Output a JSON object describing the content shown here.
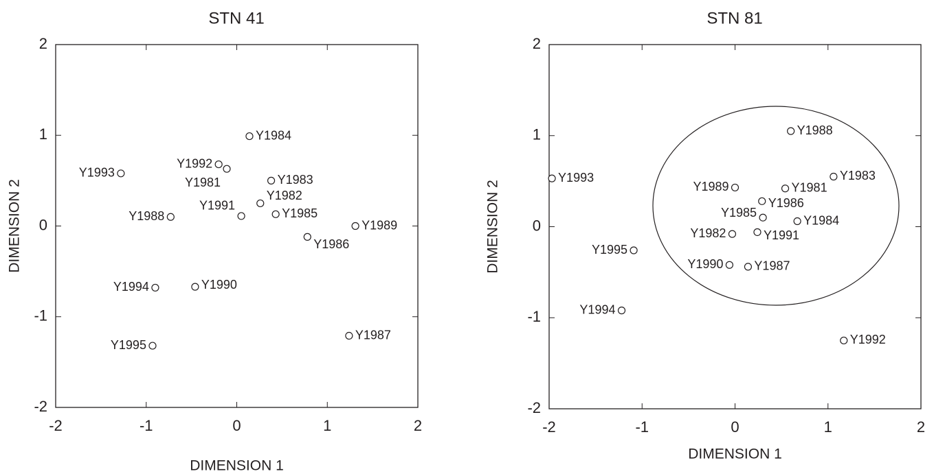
{
  "chart_data": [
    {
      "type": "scatter",
      "title": "STN 41",
      "xlabel": "DIMENSION 1",
      "ylabel": "DIMENSION 2",
      "color": "#231f20",
      "point_labels": [
        "Y1984",
        "Y1992",
        "Y1981",
        "Y1993",
        "Y1983",
        "Y1982",
        "Y1991",
        "Y1985",
        "Y1988",
        "Y1989",
        "Y1986",
        "Y1994",
        "Y1990",
        "Y1987",
        "Y1995"
      ],
      "x": [
        0.14,
        -0.2,
        -0.11,
        -1.28,
        0.38,
        0.26,
        0.05,
        0.43,
        -0.73,
        1.31,
        0.78,
        -0.9,
        -0.46,
        1.24,
        -0.93
      ],
      "y": [
        0.99,
        0.68,
        0.63,
        0.58,
        0.5,
        0.25,
        0.11,
        0.13,
        0.1,
        0.0,
        -0.12,
        -0.68,
        -0.67,
        -1.21,
        -1.32
      ],
      "xlim": [
        -2,
        2
      ],
      "ylim": [
        -2,
        2
      ],
      "xticks": [
        -2,
        -1,
        0,
        1,
        2
      ],
      "yticks": [
        -2,
        -1,
        0,
        1,
        2
      ]
    },
    {
      "type": "scatter",
      "title": "STN 81",
      "xlabel": "DIMENSION 1",
      "ylabel": "DIMENSION 2",
      "color": "#231f20",
      "point_labels": [
        "Y1988",
        "Y1993",
        "Y1989",
        "Y1981",
        "Y1983",
        "Y1986",
        "Y1985",
        "Y1984",
        "Y1982",
        "Y1991",
        "Y1995",
        "Y1990",
        "Y1987",
        "Y1994",
        "Y1992"
      ],
      "x": [
        0.6,
        -1.97,
        0.0,
        0.54,
        1.06,
        0.29,
        0.3,
        0.67,
        -0.03,
        0.24,
        -1.09,
        -0.06,
        0.14,
        -1.22,
        1.17
      ],
      "y": [
        1.05,
        0.53,
        0.43,
        0.42,
        0.55,
        0.28,
        0.1,
        0.06,
        -0.08,
        -0.06,
        -0.26,
        -0.42,
        -0.44,
        -0.92,
        -1.25
      ],
      "xlim": [
        -2,
        2
      ],
      "ylim": [
        -2,
        2
      ],
      "xticks": [
        -2,
        -1,
        0,
        1,
        2
      ],
      "yticks": [
        -2,
        -1,
        0,
        1,
        2
      ]
    }
  ]
}
